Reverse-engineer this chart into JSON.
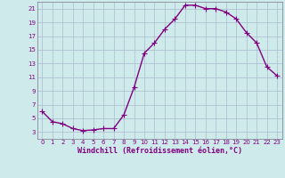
{
  "x": [
    0,
    1,
    2,
    3,
    4,
    5,
    6,
    7,
    8,
    9,
    10,
    11,
    12,
    13,
    14,
    15,
    16,
    17,
    18,
    19,
    20,
    21,
    22,
    23
  ],
  "y": [
    6.0,
    4.5,
    4.2,
    3.5,
    3.2,
    3.3,
    3.5,
    3.5,
    5.5,
    9.5,
    14.5,
    16.0,
    18.0,
    19.5,
    21.5,
    21.5,
    21.0,
    21.0,
    20.5,
    19.5,
    17.5,
    16.0,
    12.5,
    11.2
  ],
  "line_color": "#800080",
  "marker": "+",
  "marker_size": 4,
  "bg_color": "#ceeaea",
  "grid_color": "#aabbcc",
  "xlabel": "Windchill (Refroidissement éolien,°C)",
  "xlabel_color": "#800080",
  "ylim": [
    2,
    22
  ],
  "yticks": [
    3,
    5,
    7,
    9,
    11,
    13,
    15,
    17,
    19,
    21
  ],
  "xlim": [
    -0.5,
    23.5
  ],
  "xticks": [
    0,
    1,
    2,
    3,
    4,
    5,
    6,
    7,
    8,
    9,
    10,
    11,
    12,
    13,
    14,
    15,
    16,
    17,
    18,
    19,
    20,
    21,
    22,
    23
  ],
  "tick_fontsize": 5,
  "xlabel_fontsize": 6,
  "linewidth": 1.0,
  "markeredgewidth": 0.8
}
